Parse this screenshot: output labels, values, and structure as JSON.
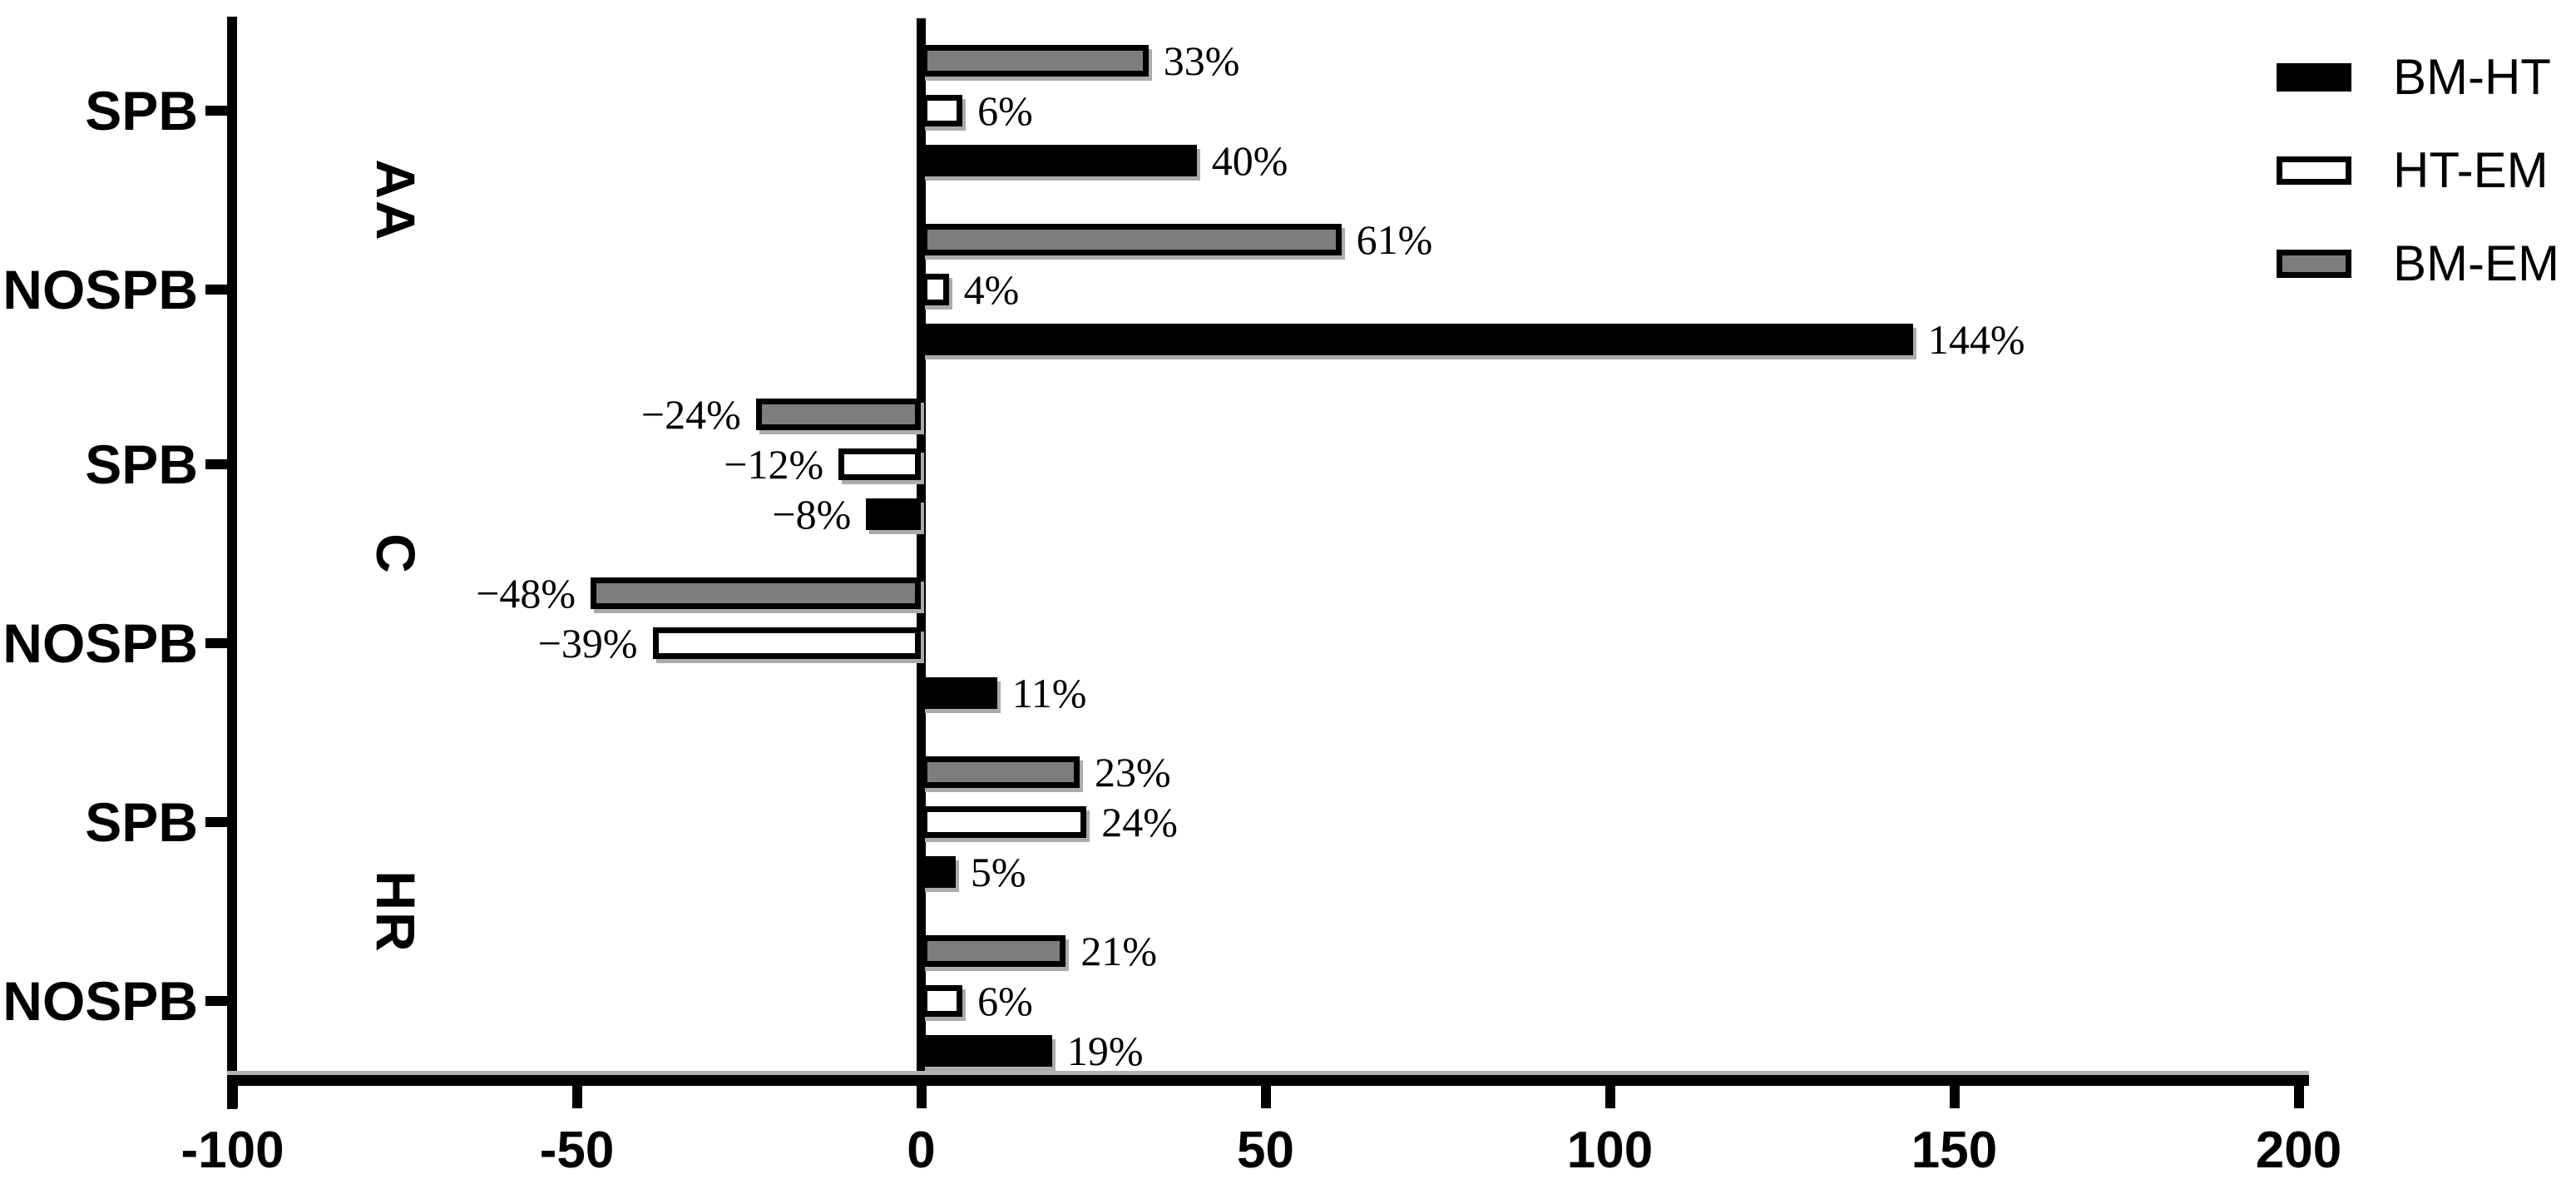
{
  "chart_data": {
    "type": "bar",
    "orientation": "horizontal",
    "title": "",
    "xlabel": "",
    "ylabel": "",
    "xlim": [
      -100,
      200
    ],
    "grid": false,
    "legend_position": "top-right",
    "x_ticks": [
      "-100",
      "-50",
      "0",
      "50",
      "100",
      "150",
      "200"
    ],
    "x_tick_values": [
      -100,
      -50,
      0,
      50,
      100,
      150,
      200
    ],
    "group_labels": [
      "AA",
      "C",
      "HR"
    ],
    "categories": [
      "SPB",
      "NOSPB",
      "SPB",
      "NOSPB",
      "SPB",
      "NOSPB"
    ],
    "series": [
      {
        "name": "BM-HT",
        "color": "#000000",
        "values": [
          40,
          144,
          -8,
          11,
          5,
          19
        ],
        "labels": [
          "40%",
          "144%",
          "−8%",
          "11%",
          "5%",
          "19%"
        ]
      },
      {
        "name": "HT-EM",
        "color": "#ffffff",
        "values": [
          6,
          4,
          -12,
          -39,
          24,
          6
        ],
        "labels": [
          "6%",
          "4%",
          "−12%",
          "−39%",
          "24%",
          "6%"
        ]
      },
      {
        "name": "BM-EM",
        "color": "#7d7d7d",
        "values": [
          33,
          61,
          -24,
          -48,
          23,
          21
        ],
        "labels": [
          "33%",
          "61%",
          "−24%",
          "−48%",
          "23%",
          "21%"
        ]
      }
    ],
    "colors": {
      "axis": "#000000",
      "bar_border": "#000000",
      "bar_shadow": "#ababab",
      "text": "#000000",
      "background": "#ffffff"
    }
  }
}
